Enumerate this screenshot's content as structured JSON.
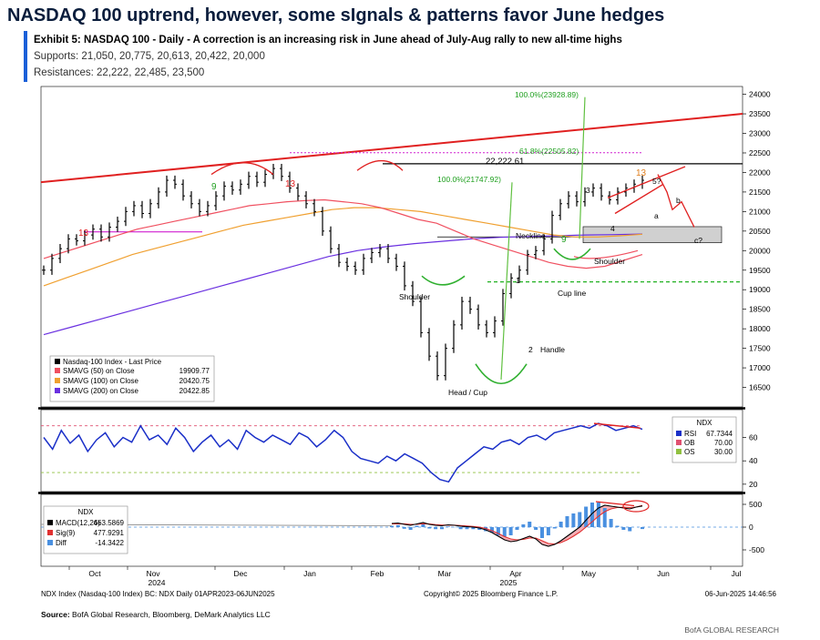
{
  "title": "NASDAQ 100 uptrend, however, some sIgnals & patterns favor June hedges",
  "exhibit": "Exhibit 5: NASDAQ 100 - Daily - A correction is an increasing risk in June ahead of July-Aug rally to new all-time highs",
  "supports": "Supports: 21,050, 20,775, 20,613, 20,422, 20,000",
  "resistances": "Resistances: 22,222, 22,485, 23,500",
  "chart_data": {
    "type": "line",
    "x_ticks": [
      "Oct",
      "Nov",
      "Dec",
      "Jan",
      "Feb",
      "Mar",
      "Apr",
      "May",
      "Jun",
      "Jul"
    ],
    "year_labels": [
      "2024",
      "2025"
    ],
    "ylim": [
      16000,
      24200
    ],
    "y_ticks": [
      16500,
      17000,
      17500,
      18000,
      18500,
      19000,
      19500,
      20000,
      20500,
      21000,
      21500,
      22000,
      22500,
      23000,
      23500,
      24000
    ],
    "price_close": [
      19500,
      19800,
      20050,
      20300,
      20250,
      20400,
      20550,
      20350,
      20600,
      20750,
      21000,
      21150,
      20950,
      21200,
      21500,
      21800,
      21700,
      21400,
      21200,
      21000,
      21150,
      21400,
      21650,
      21550,
      21700,
      21900,
      21750,
      21950,
      22100,
      21900,
      21600,
      21400,
      21200,
      21000,
      20500,
      20050,
      19700,
      19600,
      19500,
      19800,
      19950,
      20050,
      19800,
      19600,
      19100,
      18700,
      17900,
      17300,
      16800,
      17500,
      18100,
      18700,
      18500,
      18100,
      17900,
      18200,
      18900,
      19300,
      19500,
      19900,
      20000,
      20300,
      20900,
      21200,
      21400,
      21250,
      21500,
      21600,
      21400,
      21300,
      21500,
      21600,
      21700,
      21800
    ],
    "sma50": [
      19800,
      19950,
      20100,
      20250,
      20400,
      20550,
      20650,
      20750,
      20850,
      20950,
      21050,
      21150,
      21200,
      21250,
      21280,
      21300,
      21250,
      21200,
      21100,
      20950,
      20800,
      20700,
      20500,
      20300,
      20150,
      20000,
      19850,
      19700,
      19600,
      19550,
      19600,
      19750,
      19900
    ],
    "sma100": [
      19100,
      19300,
      19500,
      19700,
      19900,
      20050,
      20200,
      20350,
      20500,
      20650,
      20750,
      20850,
      20950,
      21050,
      21100,
      21100,
      21050,
      21000,
      20900,
      20800,
      20700,
      20600,
      20500,
      20400,
      20350,
      20350,
      20380,
      20420
    ],
    "sma200": [
      17850,
      18050,
      18250,
      18450,
      18650,
      18850,
      19050,
      19250,
      19450,
      19650,
      19850,
      20000,
      20100,
      20180,
      20240,
      20300,
      20340,
      20360,
      20380,
      20400,
      20410,
      20423
    ],
    "rsi": [
      60,
      50,
      66,
      55,
      62,
      48,
      58,
      64,
      52,
      60,
      56,
      70,
      58,
      62,
      54,
      68,
      60,
      48,
      56,
      62,
      52,
      58,
      50,
      66,
      60,
      56,
      62,
      58,
      54,
      64,
      60,
      52,
      58,
      66,
      60,
      48,
      42,
      40,
      38,
      44,
      40,
      46,
      42,
      38,
      30,
      24,
      22,
      34,
      40,
      46,
      52,
      50,
      56,
      58,
      54,
      60,
      62,
      58,
      64,
      66,
      68,
      70,
      68,
      72,
      70,
      66,
      68,
      70,
      67
    ],
    "macd": [
      80,
      90,
      60,
      40,
      70,
      100,
      60,
      40,
      30,
      50,
      40,
      20,
      10,
      0,
      -20,
      -60,
      -120,
      -200,
      -280,
      -320,
      -300,
      -250,
      -200,
      -260,
      -380,
      -420,
      -380,
      -300,
      -200,
      -100,
      0,
      150,
      300,
      420,
      480,
      460,
      440,
      420,
      400,
      440,
      464
    ],
    "signal": [
      70,
      75,
      72,
      60,
      60,
      75,
      70,
      55,
      45,
      45,
      42,
      35,
      25,
      15,
      0,
      -30,
      -80,
      -140,
      -210,
      -260,
      -280,
      -270,
      -240,
      -240,
      -300,
      -360,
      -370,
      -340,
      -280,
      -200,
      -110,
      0,
      120,
      240,
      340,
      400,
      430,
      440,
      430,
      440,
      478
    ],
    "support_levels": [
      21050,
      20775,
      20613,
      20422,
      20000
    ],
    "resistance_levels": [
      22222,
      22485,
      23500
    ],
    "legend_price": {
      "header": "Nasdaq-100 Index - Last Price",
      "rows": [
        {
          "name": "SMAVG (50)  on Close",
          "value": "19909.77",
          "color": "#f05060"
        },
        {
          "name": "SMAVG (100)  on Close",
          "value": "20420.75",
          "color": "#f0a030"
        },
        {
          "name": "SMAVG (200)  on Close",
          "value": "20422.85",
          "color": "#6a30e0"
        }
      ]
    },
    "legend_rsi": {
      "header": "NDX",
      "rows": [
        {
          "name": "RSI",
          "value": "67.7344",
          "color": "#1a2fc8"
        },
        {
          "name": "OB",
          "value": "70.00",
          "color": "#e05070"
        },
        {
          "name": "OS",
          "value": "30.00",
          "color": "#90c040"
        }
      ]
    },
    "legend_macd": {
      "header": "NDX",
      "rows": [
        {
          "name": "MACD(12,26)",
          "value": "463.5869",
          "color": "#000000"
        },
        {
          "name": "Sig(9)",
          "value": "477.9291",
          "color": "#e03030"
        },
        {
          "name": "Diff",
          "value": "-14.3422",
          "color": "#4a90e0"
        }
      ]
    },
    "annotations": {
      "a100_high": "100.0%(23928.89)",
      "a618": "61.8%(22505.82)",
      "a100_low": "100.0%(21747.92)",
      "level": "22,222.61",
      "neckline": "Neckline",
      "shoulder_l": "Shoulder",
      "shoulder_r": "Shoulder",
      "head": "Head / Cup",
      "cupline": "Cup line",
      "handle": "Handle",
      "n1": "1",
      "n2": "2",
      "n3": "3",
      "n4": "4",
      "n5": "5?",
      "na": "a",
      "nb": "b",
      "nc": "c?",
      "td13a": "13",
      "td9a": "9",
      "td13b": "13",
      "td9b": "9",
      "td13c": "13"
    },
    "rsi_ticks": [
      "60",
      "40",
      "20"
    ],
    "macd_ticks": [
      "500",
      "0",
      "-500"
    ]
  },
  "footer": {
    "line1_left": "NDX Index (Nasdaq-100 Index) BC: NDX  Daily 01APR2023-06JUN2025",
    "line1_mid": "Copyright© 2025 Bloomberg Finance L.P.",
    "line1_right": "06-Jun-2025 14:46:56",
    "source_label": "Source:",
    "source_text": " BofA Global Research, Bloomberg, DeMark Analytics LLC",
    "brand": "BofA GLOBAL RESEARCH"
  }
}
